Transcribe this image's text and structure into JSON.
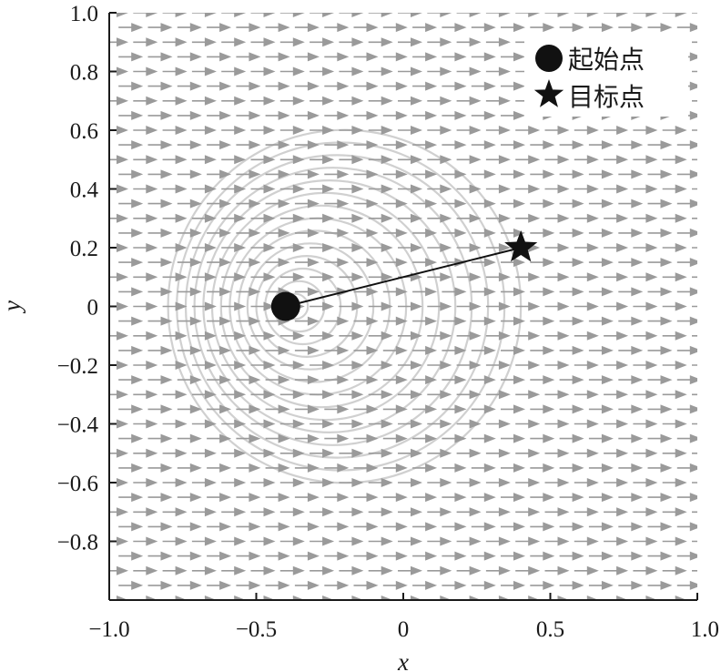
{
  "chart_data": {
    "type": "scatter",
    "xlabel": "x",
    "ylabel": "y",
    "xlim": [
      -1.0,
      1.0
    ],
    "ylim": [
      -1.0,
      1.0
    ],
    "x_ticks": [
      {
        "value": -1.0,
        "label": "−1.0"
      },
      {
        "value": -0.5,
        "label": "−0.5"
      },
      {
        "value": 0,
        "label": "0"
      },
      {
        "value": 0.5,
        "label": "0.5"
      },
      {
        "value": 1.0,
        "label": "1.0"
      }
    ],
    "y_ticks": [
      {
        "value": 1.0,
        "label": "1.0"
      },
      {
        "value": 0.8,
        "label": "0.8"
      },
      {
        "value": 0.6,
        "label": "0.6"
      },
      {
        "value": 0.4,
        "label": "0.4"
      },
      {
        "value": 0.2,
        "label": "0.2"
      },
      {
        "value": 0,
        "label": "0"
      },
      {
        "value": -0.2,
        "label": "−0.2"
      },
      {
        "value": -0.4,
        "label": "−0.4"
      },
      {
        "value": -0.6,
        "label": "−0.6"
      },
      {
        "value": -0.8,
        "label": "−0.8"
      }
    ],
    "grid": false,
    "legend_position": "top-right",
    "series": [
      {
        "name": "起始点",
        "marker": "circle",
        "points": [
          {
            "x": -0.4,
            "y": 0.0
          }
        ]
      },
      {
        "name": "目标点",
        "marker": "star",
        "points": [
          {
            "x": 0.4,
            "y": 0.2
          }
        ]
      }
    ],
    "path_segment": {
      "from": [
        -0.4,
        0.0
      ],
      "to": [
        0.4,
        0.2
      ]
    },
    "vector_field": {
      "direction": "positive-x",
      "x_spacing": 0.1,
      "y_spacing": 0.05
    },
    "contours": {
      "center": [
        -0.2,
        0.0
      ],
      "max_radius": 0.6,
      "count": 14,
      "color": "#d0d0d0"
    },
    "colors": {
      "points": "#111111",
      "arrows": "#9a9a9a",
      "axes": "#1a1a1a",
      "contours": "#d0d0d0"
    }
  }
}
